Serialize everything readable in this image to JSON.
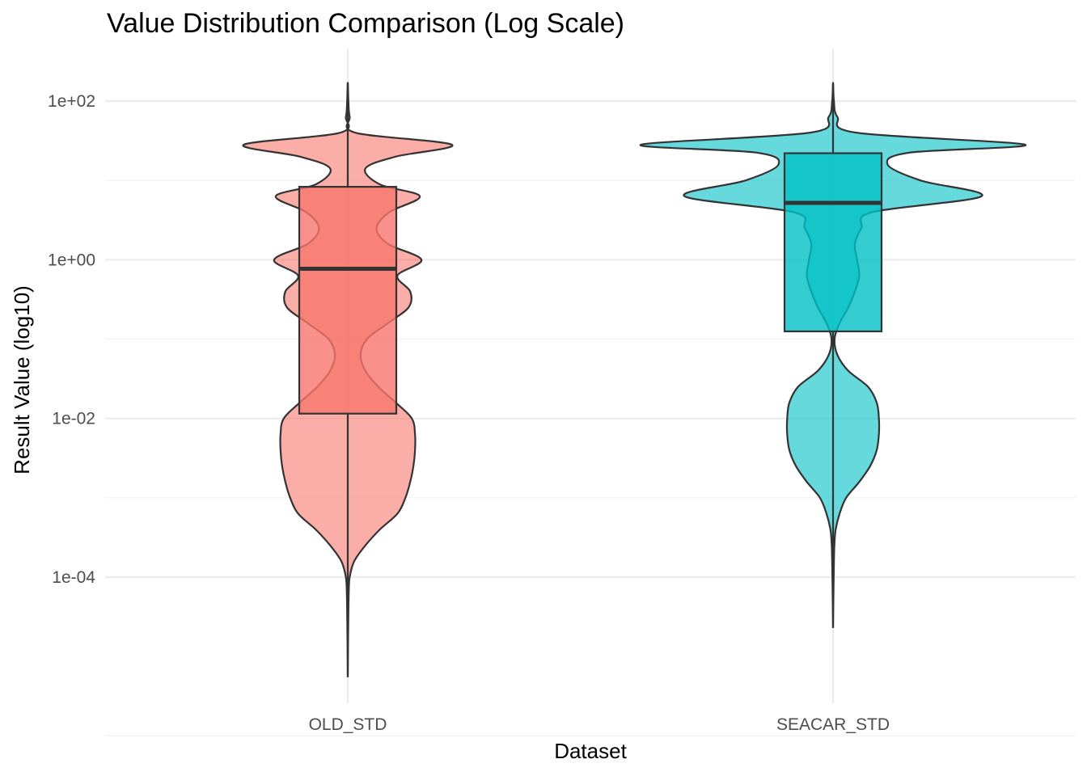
{
  "chart_data": {
    "type": "violin",
    "title": "Value Distribution Comparison (Log Scale)",
    "xlabel": "Dataset",
    "ylabel": "Result Value (log10)",
    "y_scale": "log10",
    "ylim": [
      1e-06,
      1000
    ],
    "y_ticks": [
      {
        "value": 0.0001,
        "label": "1e-04"
      },
      {
        "value": 0.01,
        "label": "1e-02"
      },
      {
        "value": 1,
        "label": "1e+00"
      },
      {
        "value": 100,
        "label": "1e+02"
      }
    ],
    "y_minor_ticks": [
      1e-06,
      0.001,
      0.1,
      10
    ],
    "grid": true,
    "legend": "none",
    "categories": [
      "OLD_STD",
      "SEACAR_STD"
    ],
    "series": [
      {
        "category": "OLD_STD",
        "color": "#F8766D",
        "violin_max_width": 0.66,
        "min": 5.5e-06,
        "max": 170,
        "q1": 0.0115,
        "median": 0.77,
        "q3": 8.3,
        "density": [
          [
            -5.26,
            0.0
          ],
          [
            -5.0,
            0.001
          ],
          [
            -4.6,
            0.003
          ],
          [
            -4.2,
            0.006
          ],
          [
            -4.0,
            0.012
          ],
          [
            -3.8,
            0.04
          ],
          [
            -3.6,
            0.11
          ],
          [
            -3.4,
            0.2
          ],
          [
            -3.2,
            0.31
          ],
          [
            -3.0,
            0.36
          ],
          [
            -2.8,
            0.39
          ],
          [
            -2.6,
            0.41
          ],
          [
            -2.4,
            0.42
          ],
          [
            -2.2,
            0.42
          ],
          [
            -2.0,
            0.4
          ],
          [
            -1.8,
            0.3
          ],
          [
            -1.6,
            0.19
          ],
          [
            -1.4,
            0.11
          ],
          [
            -1.2,
            0.08
          ],
          [
            -1.0,
            0.12
          ],
          [
            -0.8,
            0.25
          ],
          [
            -0.6,
            0.38
          ],
          [
            -0.4,
            0.39
          ],
          [
            -0.2,
            0.31
          ],
          [
            0.0,
            0.46
          ],
          [
            0.2,
            0.25
          ],
          [
            0.4,
            0.18
          ],
          [
            0.6,
            0.26
          ],
          [
            0.8,
            0.45
          ],
          [
            0.95,
            0.2
          ],
          [
            1.15,
            0.11
          ],
          [
            1.3,
            0.3
          ],
          [
            1.45,
            0.65
          ],
          [
            1.6,
            0.05
          ],
          [
            1.8,
            0.012
          ],
          [
            2.0,
            0.004
          ],
          [
            2.23,
            0.0
          ]
        ]
      },
      {
        "category": "SEACAR_STD",
        "color": "#00BFC4",
        "violin_max_width": 0.9,
        "min": 2.3e-05,
        "max": 170,
        "q1": 0.125,
        "median": 5.2,
        "q3": 22,
        "density": [
          [
            -4.64,
            0.0
          ],
          [
            -4.4,
            0.001
          ],
          [
            -4.0,
            0.003
          ],
          [
            -3.6,
            0.006
          ],
          [
            -3.4,
            0.012
          ],
          [
            -3.2,
            0.03
          ],
          [
            -3.0,
            0.06
          ],
          [
            -2.8,
            0.12
          ],
          [
            -2.6,
            0.17
          ],
          [
            -2.4,
            0.2
          ],
          [
            -2.2,
            0.21
          ],
          [
            -2.0,
            0.21
          ],
          [
            -1.8,
            0.2
          ],
          [
            -1.6,
            0.16
          ],
          [
            -1.4,
            0.07
          ],
          [
            -1.2,
            0.02
          ],
          [
            -1.0,
            0.007
          ],
          [
            -0.8,
            0.03
          ],
          [
            -0.6,
            0.07
          ],
          [
            -0.4,
            0.1
          ],
          [
            -0.2,
            0.12
          ],
          [
            0.0,
            0.11
          ],
          [
            0.2,
            0.1
          ],
          [
            0.4,
            0.13
          ],
          [
            0.6,
            0.18
          ],
          [
            0.8,
            0.68
          ],
          [
            1.0,
            0.4
          ],
          [
            1.2,
            0.25
          ],
          [
            1.35,
            0.35
          ],
          [
            1.45,
            0.88
          ],
          [
            1.6,
            0.11
          ],
          [
            1.8,
            0.02
          ],
          [
            2.0,
            0.004
          ],
          [
            2.23,
            0.0
          ]
        ]
      }
    ]
  }
}
